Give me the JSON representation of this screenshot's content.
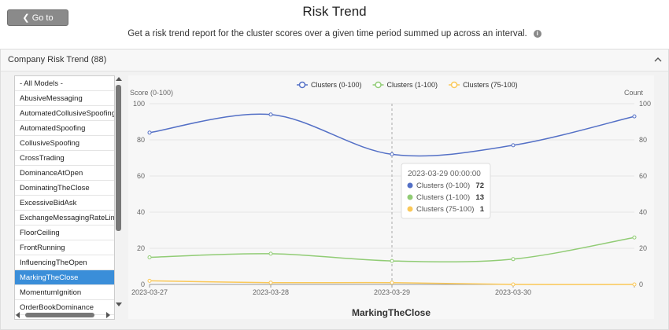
{
  "header": {
    "back_button": "Go to Reports",
    "title": "Risk Trend",
    "subtitle": "Get a risk trend report for the cluster scores over a given time period summed up across an interval."
  },
  "panel": {
    "title": "Company Risk Trend (88)",
    "models": [
      "- All Models -",
      "AbusiveMessaging",
      "AutomatedCollusiveSpoofing",
      "AutomatedSpoofing",
      "CollusiveSpoofing",
      "CrossTrading",
      "DominanceAtOpen",
      "DominatingTheClose",
      "ExcessiveBidAsk",
      "ExchangeMessagingRateLimit",
      "FloorCeiling",
      "FrontRunning",
      "InfluencingTheOpen",
      "MarkingTheClose",
      "MomentumIgnition",
      "OrderBookDominance"
    ],
    "selected": 13
  },
  "chart_data": {
    "type": "line",
    "title": "MarkingTheClose",
    "y_label": "Score (0-100)",
    "y2_label": "Count",
    "categories": [
      "2023-03-27",
      "2023-03-28",
      "2023-03-29",
      "2023-03-30",
      null
    ],
    "series": [
      {
        "name": "Clusters (0-100)",
        "color": "#5470c6",
        "values": [
          84,
          94,
          72,
          77,
          93
        ]
      },
      {
        "name": "Clusters (1-100)",
        "color": "#91cc75",
        "values": [
          15,
          17,
          13,
          14,
          26
        ]
      },
      {
        "name": "Clusters (75-100)",
        "color": "#fac858",
        "values": [
          2,
          1,
          1,
          0,
          0
        ]
      }
    ],
    "ylim": [
      0,
      100
    ],
    "yticks": [
      0,
      20,
      40,
      60,
      80,
      100
    ],
    "y2lim": [
      0,
      100
    ],
    "y2ticks": [
      0,
      20,
      40,
      60,
      80,
      100
    ],
    "tooltip": {
      "title": "2023-03-29 00:00:00",
      "index": 2
    }
  }
}
